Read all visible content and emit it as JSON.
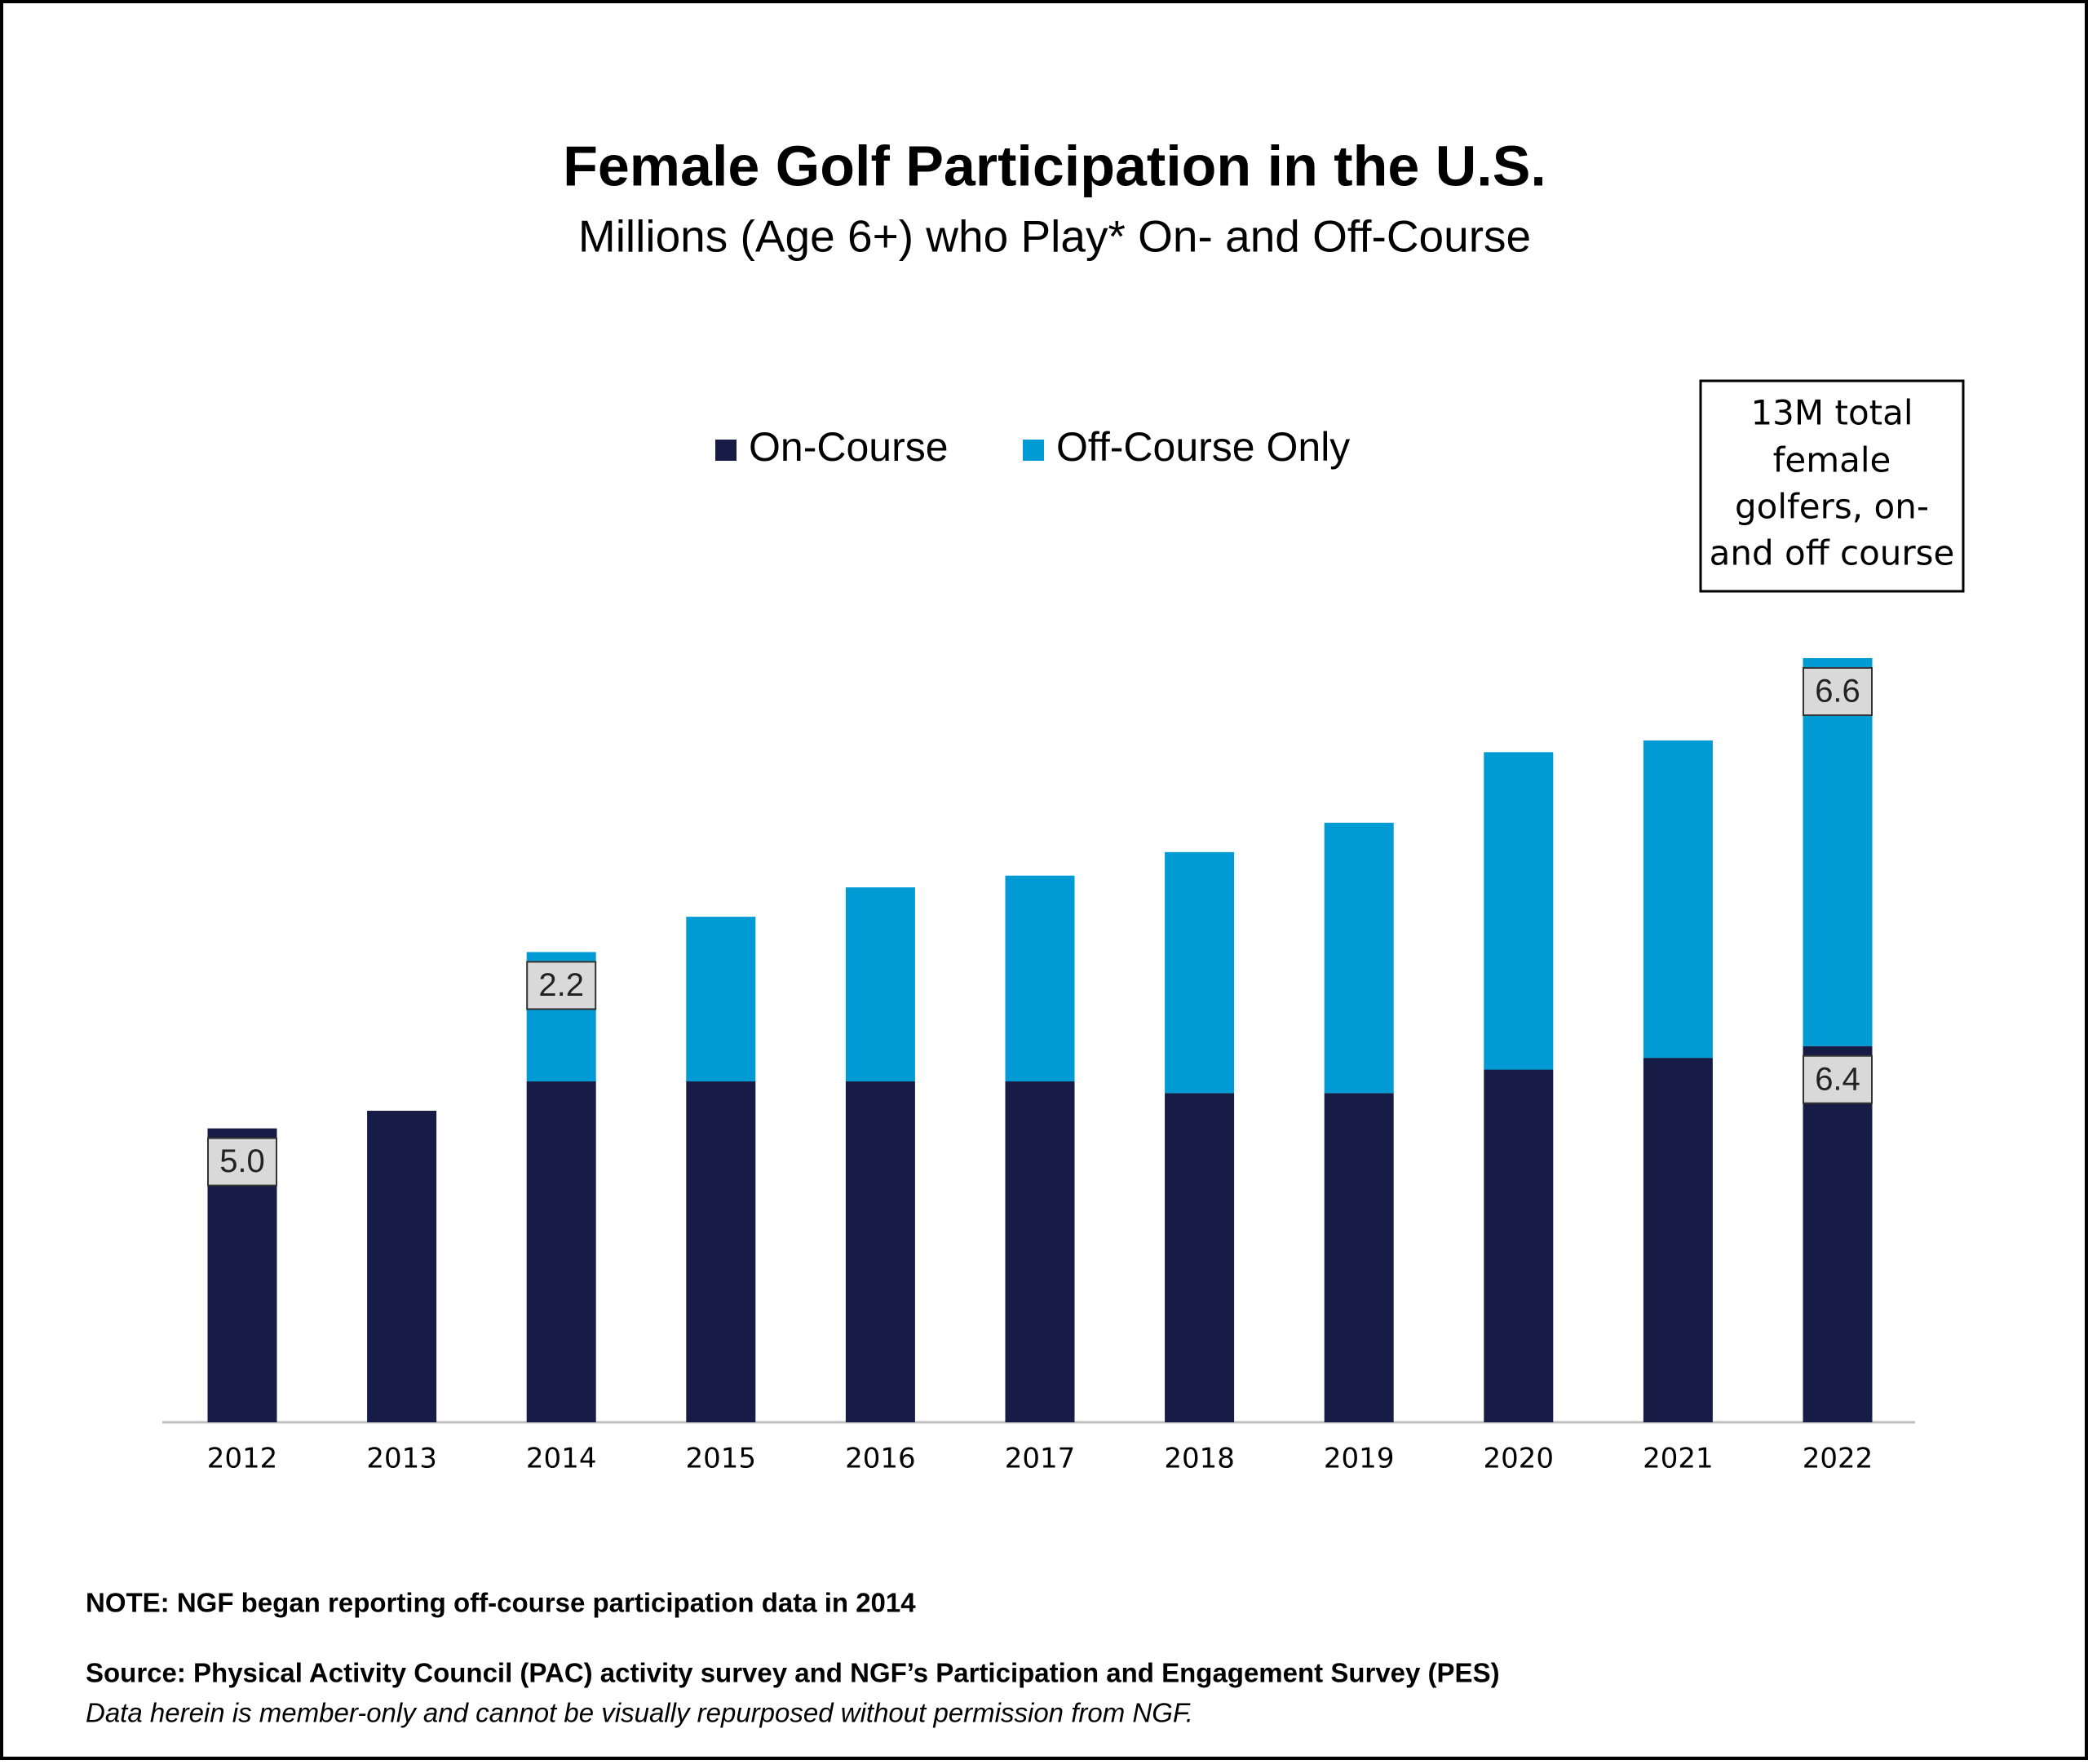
{
  "chart_data": {
    "type": "stacked_bar",
    "title": "Female Golf Participation in the U.S.",
    "subtitle": "Millions (Age 6+) who Play* On- and Off-Course",
    "categories": [
      "2012",
      "2013",
      "2014",
      "2015",
      "2016",
      "2017",
      "2018",
      "2019",
      "2020",
      "2021",
      "2022"
    ],
    "series": [
      {
        "name": "On-Course",
        "color": "#161c45",
        "values": [
          5.0,
          5.3,
          5.8,
          5.8,
          5.8,
          5.8,
          5.6,
          5.6,
          6.0,
          6.2,
          6.4
        ],
        "value_labels": [
          "5.0",
          null,
          null,
          null,
          null,
          null,
          null,
          null,
          null,
          null,
          "6.4"
        ]
      },
      {
        "name": "Off-Course Only",
        "color": "#009ad4",
        "values": [
          null,
          null,
          2.2,
          2.8,
          3.3,
          3.5,
          4.1,
          4.6,
          5.4,
          5.4,
          6.6
        ],
        "value_labels": [
          null,
          null,
          "2.2",
          null,
          null,
          null,
          null,
          null,
          null,
          null,
          "6.6"
        ]
      }
    ],
    "annotation": [
      "13M total",
      "female",
      "golfers, on-",
      "and off course"
    ],
    "note": "NOTE: NGF began reporting off-course participation data in 2014",
    "source": "Source: Physical Activity Council (PAC) activity survey and NGF’s Participation and Engagement Survey (PES)",
    "disclaimer": "Data herein is member-only and cannot be visually repurposed without permission from NGF."
  }
}
